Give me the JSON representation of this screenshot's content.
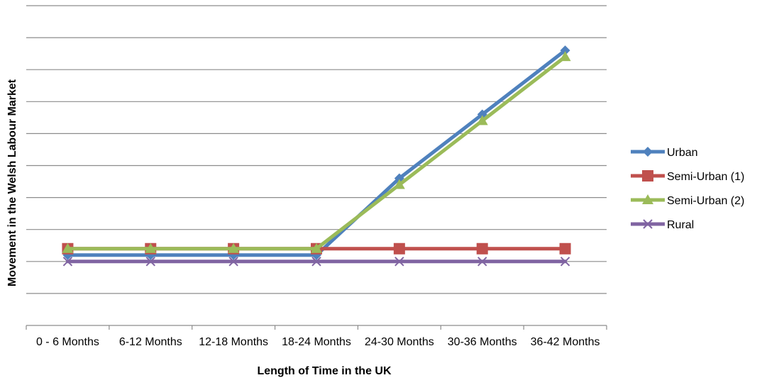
{
  "chart_data": {
    "type": "line",
    "title": "",
    "xlabel": "Length of Time in the UK",
    "ylabel": "Movement in the Welsh Labour Market",
    "categories": [
      "0 - 6 Months",
      "6-12 Months",
      "12-18 Months",
      "18-24 Months",
      "24-30 Months",
      "30-36 Months",
      "36-42 Months"
    ],
    "ylim": [
      -2,
      8
    ],
    "y_tick_labels_shown": false,
    "grid": "horizontal",
    "legend_position": "right",
    "series": [
      {
        "name": "Urban",
        "color": "#4F81BD",
        "marker": "diamond",
        "values": [
          0.2,
          0.2,
          0.2,
          0.2,
          2.6,
          4.6,
          6.6
        ]
      },
      {
        "name": "Semi-Urban (1)",
        "color": "#C0504D",
        "marker": "square",
        "values": [
          0.4,
          0.4,
          0.4,
          0.4,
          0.4,
          0.4,
          0.4
        ]
      },
      {
        "name": "Semi-Urban (2)",
        "color": "#9BBB59",
        "marker": "triangle",
        "values": [
          0.4,
          0.4,
          0.4,
          0.4,
          2.4,
          4.4,
          6.4
        ]
      },
      {
        "name": "Rural",
        "color": "#8064A2",
        "marker": "x",
        "values": [
          0,
          0,
          0,
          0,
          0,
          0,
          0
        ]
      }
    ]
  }
}
